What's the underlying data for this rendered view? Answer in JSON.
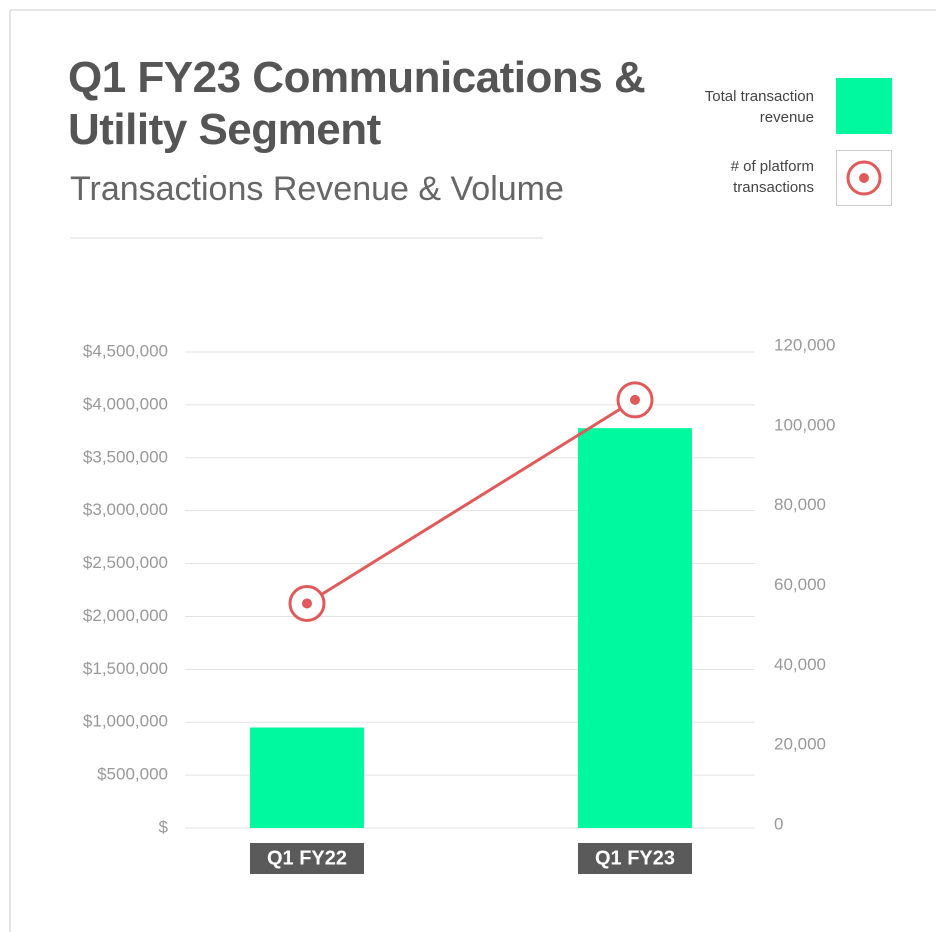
{
  "chart_data": {
    "type": "bar-line",
    "title": "Q1 FY23 Communications & Utility Segment",
    "subtitle": "Transactions Revenue & Volume",
    "categories": [
      "Q1 FY22",
      "Q1 FY23"
    ],
    "series": [
      {
        "name": "Total transaction revenue",
        "type": "bar",
        "color": "#00f99f",
        "values": [
          950000,
          3780000
        ]
      },
      {
        "name": "# of platform transactions",
        "type": "line",
        "axis": "y2",
        "color": "#e05a5a",
        "values": [
          55500,
          106500
        ]
      }
    ],
    "ylim": [
      0,
      4500000
    ],
    "yticks": [
      {
        "value": 0,
        "label": "$"
      },
      {
        "value": 500000,
        "label": "$500,000"
      },
      {
        "value": 1000000,
        "label": "$1,000,000"
      },
      {
        "value": 1500000,
        "label": "$1,500,000"
      },
      {
        "value": 2000000,
        "label": "$2,000,000"
      },
      {
        "value": 2500000,
        "label": "$2,500,000"
      },
      {
        "value": 3000000,
        "label": "$3,000,000"
      },
      {
        "value": 3500000,
        "label": "$3,500,000"
      },
      {
        "value": 4000000,
        "label": "$4,000,000"
      },
      {
        "value": 4500000,
        "label": "$4,500,000"
      }
    ],
    "y2lim": [
      0,
      120000
    ],
    "y2ticks": [
      0,
      {
        "value": 20000,
        "label": "20,000"
      },
      {
        "value": 40000,
        "label": "40,000"
      },
      {
        "value": 60000,
        "label": "60,000"
      },
      {
        "value": 80000,
        "label": "80,000"
      },
      {
        "value": 100000,
        "label": "100,000"
      },
      {
        "value": 120000,
        "label": "120,000"
      }
    ],
    "grid": true,
    "legend": "upper right"
  }
}
